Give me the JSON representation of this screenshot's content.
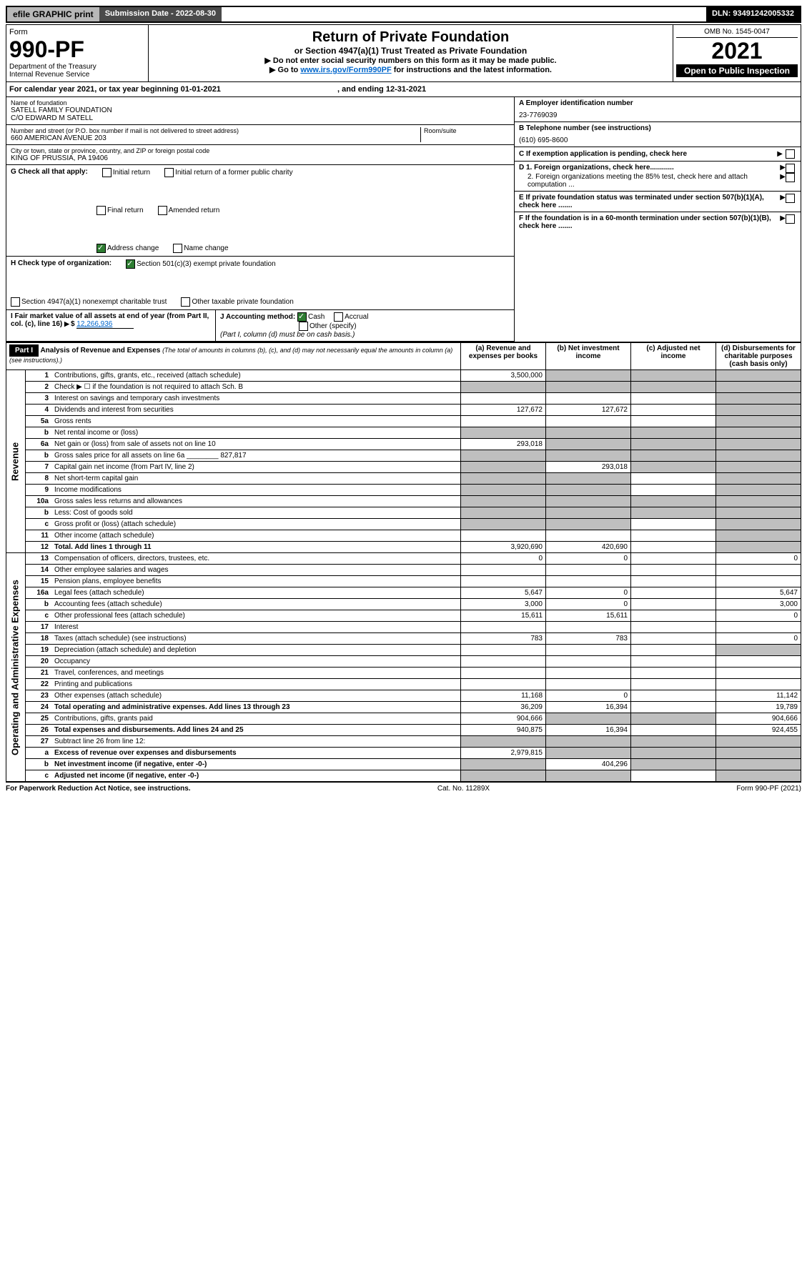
{
  "topbar": {
    "efile": "efile GRAPHIC print",
    "subdate_label": "Submission Date - 2022-08-30",
    "dln": "DLN: 93491242005332"
  },
  "header": {
    "form_label": "Form",
    "form_no": "990-PF",
    "dept": "Department of the Treasury",
    "irs": "Internal Revenue Service",
    "title": "Return of Private Foundation",
    "subtitle": "or Section 4947(a)(1) Trust Treated as Private Foundation",
    "instr1": "▶ Do not enter social security numbers on this form as it may be made public.",
    "instr2_pre": "▶ Go to ",
    "instr2_link": "www.irs.gov/Form990PF",
    "instr2_post": " for instructions and the latest information.",
    "omb": "OMB No. 1545-0047",
    "year": "2021",
    "open_pub": "Open to Public Inspection"
  },
  "caly": {
    "text_pre": "For calendar year 2021, or tax year beginning ",
    "begin": "01-01-2021",
    "text_mid": " , and ending ",
    "end": "12-31-2021"
  },
  "info": {
    "name_label": "Name of foundation",
    "name1": "SATELL FAMILY FOUNDATION",
    "name2": "C/O EDWARD M SATELL",
    "street_label": "Number and street (or P.O. box number if mail is not delivered to street address)",
    "street": "660 AMERICAN AVENUE 203",
    "room_label": "Room/suite",
    "city_label": "City or town, state or province, country, and ZIP or foreign postal code",
    "city": "KING OF PRUSSIA, PA  19406",
    "ein_label": "A Employer identification number",
    "ein": "23-7769039",
    "phone_label": "B Telephone number (see instructions)",
    "phone": "(610) 695-8600",
    "c_label": "C If exemption application is pending, check here",
    "d1": "D 1. Foreign organizations, check here............",
    "d2": "2. Foreign organizations meeting the 85% test, check here and attach computation ...",
    "e_label": "E If private foundation status was terminated under section 507(b)(1)(A), check here .......",
    "f_label": "F If the foundation is in a 60-month termination under section 507(b)(1)(B), check here .......",
    "g_label": "G Check all that apply:",
    "g_opts": [
      "Initial return",
      "Initial return of a former public charity",
      "Final return",
      "Amended return",
      "Address change",
      "Name change"
    ],
    "h_label": "H Check type of organization:",
    "h_opts": [
      "Section 501(c)(3) exempt private foundation",
      "Section 4947(a)(1) nonexempt charitable trust",
      "Other taxable private foundation"
    ],
    "i_label": "I Fair market value of all assets at end of year (from Part II, col. (c), line 16)",
    "i_val": "12,266,936",
    "j_label": "J Accounting method:",
    "j_opts": [
      "Cash",
      "Accrual",
      "Other (specify)"
    ],
    "j_note": "(Part I, column (d) must be on cash basis.)"
  },
  "part1": {
    "label": "Part I",
    "title": "Analysis of Revenue and Expenses",
    "title_note": "(The total of amounts in columns (b), (c), and (d) may not necessarily equal the amounts in column (a) (see instructions).)",
    "cols": {
      "a": "(a) Revenue and expenses per books",
      "b": "(b) Net investment income",
      "c": "(c) Adjusted net income",
      "d": "(d) Disbursements for charitable purposes (cash basis only)"
    }
  },
  "side": {
    "revenue": "Revenue",
    "expenses": "Operating and Administrative Expenses"
  },
  "rows": [
    {
      "n": "1",
      "desc": "Contributions, gifts, grants, etc., received (attach schedule)",
      "a": "3,500,000",
      "b": "",
      "c": "",
      "d": "",
      "sb": true,
      "sc": true,
      "sd": true
    },
    {
      "n": "2",
      "desc": "Check ▶ ☐ if the foundation is not required to attach Sch. B",
      "a": "",
      "b": "",
      "c": "",
      "d": "",
      "sa": true,
      "sb": true,
      "sc": true,
      "sd": true
    },
    {
      "n": "3",
      "desc": "Interest on savings and temporary cash investments",
      "a": "",
      "b": "",
      "c": "",
      "d": "",
      "sd": true
    },
    {
      "n": "4",
      "desc": "Dividends and interest from securities",
      "a": "127,672",
      "b": "127,672",
      "c": "",
      "d": "",
      "sd": true
    },
    {
      "n": "5a",
      "desc": "Gross rents",
      "a": "",
      "b": "",
      "c": "",
      "d": "",
      "sd": true
    },
    {
      "n": "b",
      "desc": "Net rental income or (loss)",
      "a": "",
      "b": "",
      "c": "",
      "d": "",
      "sa": true,
      "sb": true,
      "sc": true,
      "sd": true
    },
    {
      "n": "6a",
      "desc": "Net gain or (loss) from sale of assets not on line 10",
      "a": "293,018",
      "b": "",
      "c": "",
      "d": "",
      "sb": true,
      "sc": true,
      "sd": true
    },
    {
      "n": "b",
      "desc": "Gross sales price for all assets on line 6a ________ 827,817",
      "a": "",
      "b": "",
      "c": "",
      "d": "",
      "sa": true,
      "sb": true,
      "sc": true,
      "sd": true
    },
    {
      "n": "7",
      "desc": "Capital gain net income (from Part IV, line 2)",
      "a": "",
      "b": "293,018",
      "c": "",
      "d": "",
      "sa": true,
      "sc": true,
      "sd": true
    },
    {
      "n": "8",
      "desc": "Net short-term capital gain",
      "a": "",
      "b": "",
      "c": "",
      "d": "",
      "sa": true,
      "sb": true,
      "sd": true
    },
    {
      "n": "9",
      "desc": "Income modifications",
      "a": "",
      "b": "",
      "c": "",
      "d": "",
      "sa": true,
      "sb": true,
      "sd": true
    },
    {
      "n": "10a",
      "desc": "Gross sales less returns and allowances",
      "a": "",
      "b": "",
      "c": "",
      "d": "",
      "sa": true,
      "sb": true,
      "sc": true,
      "sd": true
    },
    {
      "n": "b",
      "desc": "Less: Cost of goods sold",
      "a": "",
      "b": "",
      "c": "",
      "d": "",
      "sa": true,
      "sb": true,
      "sc": true,
      "sd": true
    },
    {
      "n": "c",
      "desc": "Gross profit or (loss) (attach schedule)",
      "a": "",
      "b": "",
      "c": "",
      "d": "",
      "sa": true,
      "sb": true,
      "sd": true
    },
    {
      "n": "11",
      "desc": "Other income (attach schedule)",
      "a": "",
      "b": "",
      "c": "",
      "d": "",
      "sd": true
    },
    {
      "n": "12",
      "desc": "Total. Add lines 1 through 11",
      "a": "3,920,690",
      "b": "420,690",
      "c": "",
      "d": "",
      "bold": true,
      "sd": true
    },
    {
      "n": "13",
      "desc": "Compensation of officers, directors, trustees, etc.",
      "a": "0",
      "b": "0",
      "c": "",
      "d": "0"
    },
    {
      "n": "14",
      "desc": "Other employee salaries and wages",
      "a": "",
      "b": "",
      "c": "",
      "d": ""
    },
    {
      "n": "15",
      "desc": "Pension plans, employee benefits",
      "a": "",
      "b": "",
      "c": "",
      "d": ""
    },
    {
      "n": "16a",
      "desc": "Legal fees (attach schedule)",
      "a": "5,647",
      "b": "0",
      "c": "",
      "d": "5,647"
    },
    {
      "n": "b",
      "desc": "Accounting fees (attach schedule)",
      "a": "3,000",
      "b": "0",
      "c": "",
      "d": "3,000"
    },
    {
      "n": "c",
      "desc": "Other professional fees (attach schedule)",
      "a": "15,611",
      "b": "15,611",
      "c": "",
      "d": "0"
    },
    {
      "n": "17",
      "desc": "Interest",
      "a": "",
      "b": "",
      "c": "",
      "d": ""
    },
    {
      "n": "18",
      "desc": "Taxes (attach schedule) (see instructions)",
      "a": "783",
      "b": "783",
      "c": "",
      "d": "0"
    },
    {
      "n": "19",
      "desc": "Depreciation (attach schedule) and depletion",
      "a": "",
      "b": "",
      "c": "",
      "d": "",
      "sd": true
    },
    {
      "n": "20",
      "desc": "Occupancy",
      "a": "",
      "b": "",
      "c": "",
      "d": ""
    },
    {
      "n": "21",
      "desc": "Travel, conferences, and meetings",
      "a": "",
      "b": "",
      "c": "",
      "d": ""
    },
    {
      "n": "22",
      "desc": "Printing and publications",
      "a": "",
      "b": "",
      "c": "",
      "d": ""
    },
    {
      "n": "23",
      "desc": "Other expenses (attach schedule)",
      "a": "11,168",
      "b": "0",
      "c": "",
      "d": "11,142"
    },
    {
      "n": "24",
      "desc": "Total operating and administrative expenses. Add lines 13 through 23",
      "a": "36,209",
      "b": "16,394",
      "c": "",
      "d": "19,789",
      "bold": true
    },
    {
      "n": "25",
      "desc": "Contributions, gifts, grants paid",
      "a": "904,666",
      "b": "",
      "c": "",
      "d": "904,666",
      "sb": true,
      "sc": true
    },
    {
      "n": "26",
      "desc": "Total expenses and disbursements. Add lines 24 and 25",
      "a": "940,875",
      "b": "16,394",
      "c": "",
      "d": "924,455",
      "bold": true
    },
    {
      "n": "27",
      "desc": "Subtract line 26 from line 12:",
      "a": "",
      "b": "",
      "c": "",
      "d": "",
      "sa": true,
      "sb": true,
      "sc": true,
      "sd": true
    },
    {
      "n": "a",
      "desc": "Excess of revenue over expenses and disbursements",
      "a": "2,979,815",
      "b": "",
      "c": "",
      "d": "",
      "bold": true,
      "sb": true,
      "sc": true,
      "sd": true
    },
    {
      "n": "b",
      "desc": "Net investment income (if negative, enter -0-)",
      "a": "",
      "b": "404,296",
      "c": "",
      "d": "",
      "bold": true,
      "sa": true,
      "sc": true,
      "sd": true
    },
    {
      "n": "c",
      "desc": "Adjusted net income (if negative, enter -0-)",
      "a": "",
      "b": "",
      "c": "",
      "d": "",
      "bold": true,
      "sa": true,
      "sb": true,
      "sd": true
    }
  ],
  "footer": {
    "left": "For Paperwork Reduction Act Notice, see instructions.",
    "mid": "Cat. No. 11289X",
    "right": "Form 990-PF (2021)"
  }
}
